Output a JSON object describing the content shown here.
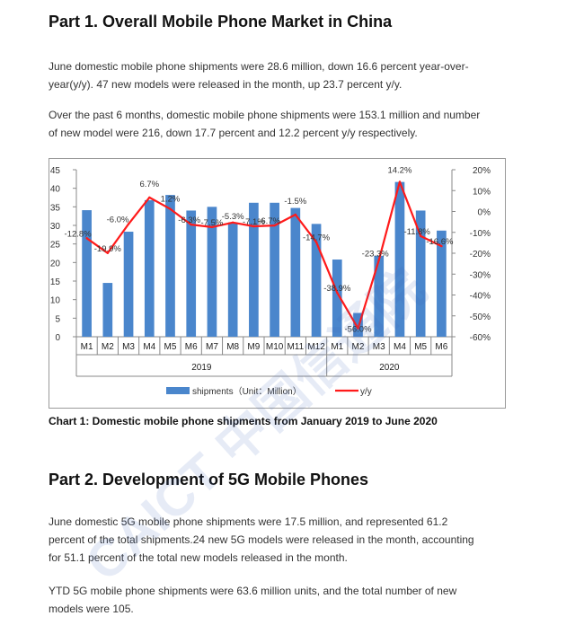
{
  "part1": {
    "title": "Part 1. Overall Mobile Phone Market in China",
    "para1_line1": "June domestic mobile phone shipments were 28.6 million, down 16.6 percent year-over-",
    "para1_line2": "year(y/y). 47 new models were released in the month, up 23.7 percent y/y.",
    "para2_line1": "Over the past 6 months, domestic mobile phone shipments were 153.1 million and number",
    "para2_line2": "of new model were 216, down 17.7 percent and 12.2 percent y/y respectively."
  },
  "chart_caption": "Chart 1: Domestic mobile phone shipments from January 2019 to June 2020",
  "chart_data": {
    "type": "bar+line",
    "categories": [
      "M1",
      "M2",
      "M3",
      "M4",
      "M5",
      "M6",
      "M7",
      "M8",
      "M9",
      "M10",
      "M11",
      "M12",
      "M1",
      "M2",
      "M3",
      "M4",
      "M5",
      "M6"
    ],
    "year_labels": [
      {
        "label": "2019",
        "span": [
          0,
          11
        ]
      },
      {
        "label": "2020",
        "span": [
          12,
          17
        ]
      }
    ],
    "series": [
      {
        "name": "shipments（Unit：Million）",
        "type": "bar",
        "axis": "left",
        "values": [
          34.1,
          14.5,
          28.3,
          36.8,
          38.2,
          34.0,
          35.0,
          30.8,
          36.1,
          36.1,
          34.7,
          30.4,
          20.8,
          6.4,
          21.8,
          41.7,
          34.0,
          28.6
        ]
      },
      {
        "name": "y/y",
        "type": "line",
        "axis": "right",
        "values": [
          -12.8,
          -19.9,
          -6.0,
          6.7,
          1.2,
          -6.3,
          -7.5,
          -5.3,
          -7.1,
          -6.7,
          -1.5,
          -14.7,
          -38.9,
          -56.0,
          -23.3,
          14.2,
          -11.8,
          -16.6
        ],
        "labels": [
          "-12.8%",
          "-19.9%",
          "-6.0%",
          "6.7%",
          "1.2%",
          "-6.3%",
          "-7.5%",
          "-5.3%",
          "-7.1%",
          "-6.7%",
          "-1.5%",
          "-14.7%",
          "-38.9%",
          "-56.0%",
          "-23.3%",
          "14.2%",
          "-11.8%",
          "-16.6%"
        ]
      }
    ],
    "y_left": {
      "ticks": [
        "0",
        "5",
        "10",
        "15",
        "20",
        "25",
        "30",
        "35",
        "40",
        "45"
      ],
      "ylim": [
        0,
        45
      ]
    },
    "y_right": {
      "ticks": [
        "-60%",
        "-50%",
        "-40%",
        "-30%",
        "-20%",
        "-10%",
        "0%",
        "10%",
        "20%"
      ],
      "ylim": [
        -60,
        20
      ]
    },
    "colors": {
      "bar": "#4a86cc",
      "line": "#ff1a1a"
    },
    "legend_position": "bottom",
    "grid": false
  },
  "part2": {
    "title": "Part 2. Development of 5G Mobile Phones",
    "para1_line1": "June domestic 5G mobile phone shipments were 17.5 million, and represented 61.2",
    "para1_line2": "percent of the total shipments.24 new 5G models were released in the month, accounting",
    "para1_line3": "for 51.1 percent of the total new models released in the month.",
    "para2_line1": "YTD 5G mobile phone shipments were 63.6 million units, and the total number of new",
    "para2_line2": "models were 105."
  },
  "watermark": {
    "text": "CAICT 中国信通院",
    "color": "#3f63b8"
  }
}
